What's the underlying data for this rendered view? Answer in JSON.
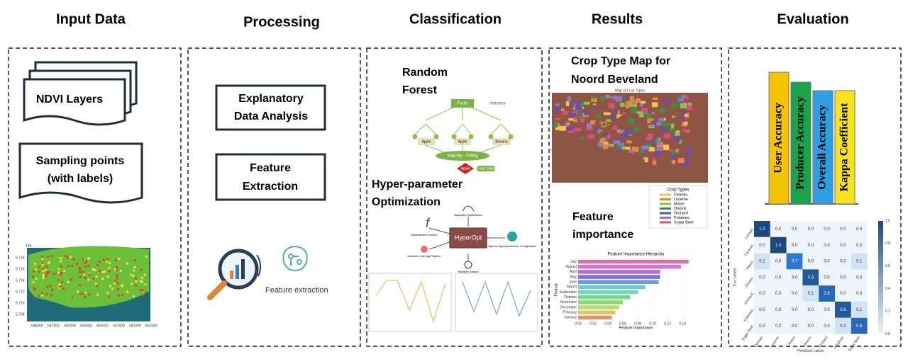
{
  "columns": [
    {
      "title": "Input Data"
    },
    {
      "title": "Processing"
    },
    {
      "title": "Classification"
    },
    {
      "title": "Results"
    },
    {
      "title": "Evaluation"
    }
  ],
  "input": {
    "ndvi": "NDVI Layers",
    "sampling": [
      "Sampling points",
      "(with labels)"
    ],
    "map_xticks": [
      "545000",
      "547500",
      "550000",
      "552500",
      "555000",
      "557500",
      "560000",
      "562500"
    ],
    "map_yticks": [
      "5.718",
      "5.716",
      "5.714",
      "5.712",
      "5.710",
      "5.708"
    ],
    "map_unit": "1e6"
  },
  "processing": {
    "eda": [
      "Explanatory",
      "Data Analysis"
    ],
    "fe": [
      "Feature",
      "Extraction"
    ],
    "icon_label": "Feature extraction"
  },
  "classification": {
    "rf_title": [
      "Random",
      "Forest"
    ],
    "rf_labels": {
      "root": "Fruits",
      "instance": "Instance",
      "leaf1": "Apple",
      "leaf2": "Apple",
      "leaf3": "Banana",
      "vote": "Majority - Voting",
      "result": "Apple",
      "final": "Final Class"
    },
    "hp_title": [
      "Hyper-parameter",
      "Optimization"
    ],
    "hp_labels": {
      "center": "HyperOpt",
      "a": "Multivariate Function",
      "b": "Machine Learning Pipeline",
      "c": "Random Search",
      "d": "Optimal Hyperparameter Configuration",
      "e": "Bayesian Optimization"
    }
  },
  "results": {
    "map_title": [
      "Crop Type Map for",
      "Noord Beveland"
    ],
    "map_caption": "Map of Crop Types",
    "legend_title": "Crop Types",
    "legend": [
      {
        "name": "Cereals",
        "color": "#f2c14e"
      },
      {
        "name": "Lucerne",
        "color": "#e8893a"
      },
      {
        "name": "Maize",
        "color": "#8bc34a"
      },
      {
        "name": "Onions",
        "color": "#3f8f4a"
      },
      {
        "name": "Orchard",
        "color": "#6a4fa3"
      },
      {
        "name": "Potatoes",
        "color": "#8e7cc3"
      },
      {
        "name": "Sugar Beet",
        "color": "#d94f7a"
      }
    ],
    "fi_title": [
      "Feature",
      "importance"
    ],
    "fi_chart": {
      "title": "Feature Importance Hierarchy",
      "xlabel": "Feature Importance",
      "ylabel": "Feature",
      "categories": [
        "July",
        "August",
        "April",
        "May",
        "June",
        "March",
        "September",
        "October",
        "November",
        "December",
        "February",
        "January"
      ],
      "values": [
        0.148,
        0.138,
        0.11,
        0.11,
        0.108,
        0.09,
        0.08,
        0.07,
        0.06,
        0.055,
        0.05,
        0.045
      ],
      "xlim": [
        0,
        0.155
      ],
      "xticks": [
        {
          "value": 0,
          "label": "0.00"
        },
        {
          "value": 0.02,
          "label": "0.02"
        },
        {
          "value": 0.04,
          "label": "0.04"
        },
        {
          "value": 0.06,
          "label": "0.06"
        },
        {
          "value": 0.08,
          "label": "0.08"
        },
        {
          "value": 0.1,
          "label": "0.10"
        },
        {
          "value": 0.12,
          "label": "0.12"
        },
        {
          "value": 0.14,
          "label": "0.14"
        }
      ]
    }
  },
  "evaluation": {
    "metrics": [
      {
        "name": "User Accuracy",
        "color": "#f5c400"
      },
      {
        "name": "Producer Accuracy",
        "color": "#1aa34a"
      },
      {
        "name": "Overall Accuracy",
        "color": "#2e9fe0"
      },
      {
        "name": "Kappa Coefficient",
        "color": "#f7e21b"
      }
    ],
    "cm": {
      "labels": [
        "Cereals",
        "Lucerne",
        "Maize",
        "Onions",
        "Orchard",
        "Potatoes",
        "Sugar Beet"
      ],
      "rows": [
        [
          "1.0",
          "0.0",
          "0.0",
          "0.0",
          "0.0",
          "0.0",
          "0.0"
        ],
        [
          "0.0",
          "1.0",
          "0.0",
          "0.0",
          "0.0",
          "0.0",
          "0.0"
        ],
        [
          "0.1",
          "0.0",
          "0.7",
          "0.0",
          "0.0",
          "0.0",
          "0.1"
        ],
        [
          "0.0",
          "0.0",
          "0.0",
          "0.9",
          "0.0",
          "0.0",
          "0.0"
        ],
        [
          "0.0",
          "0.0",
          "0.0",
          "0.1",
          "0.8",
          "0.0",
          "0.0"
        ],
        [
          "0.0",
          "0.0",
          "0.0",
          "0.0",
          "0.0",
          "0.9",
          "0.1"
        ],
        [
          "0.0",
          "0.0",
          "0.0",
          "0.0",
          "0.0",
          "0.1",
          "0.8"
        ]
      ],
      "ylabel": "True Labels",
      "xlabel": "Predicted Labels",
      "cbar": [
        "1.0",
        "0.8",
        "0.6",
        "0.4",
        "0.2",
        "0.0"
      ]
    }
  }
}
